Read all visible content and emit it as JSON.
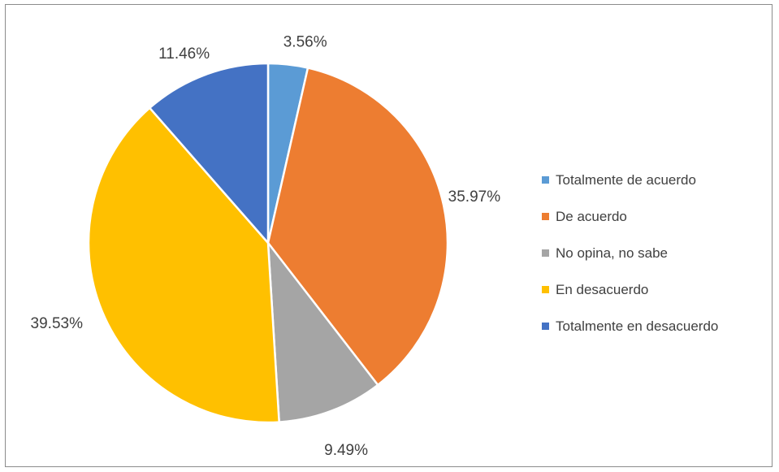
{
  "chart_data": {
    "type": "pie",
    "title": "",
    "categories": [
      "Totalmente de acuerdo",
      "De acuerdo",
      "No opina, no sabe",
      "En desacuerdo",
      "Totalmente en desacuerdo"
    ],
    "values": [
      3.56,
      35.97,
      9.49,
      39.53,
      11.46
    ],
    "labels": [
      "3.56%",
      "35.97%",
      "9.49%",
      "39.53%",
      "11.46%"
    ],
    "colors": [
      "#5B9BD5",
      "#ED7D31",
      "#A5A5A5",
      "#FFC000",
      "#4472C4"
    ],
    "legend_position": "right",
    "start_angle": "12 o'clock, clockwise"
  }
}
